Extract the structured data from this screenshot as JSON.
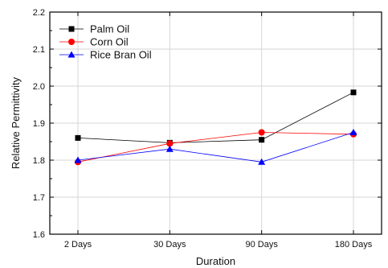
{
  "chart_data": {
    "type": "line",
    "categories": [
      "2 Days",
      "30 Days",
      "90 Days",
      "180 Days"
    ],
    "series": [
      {
        "name": "Palm Oil",
        "values": [
          1.86,
          1.847,
          1.855,
          1.983
        ],
        "color": "#000000",
        "marker": "square"
      },
      {
        "name": "Corn Oil",
        "values": [
          1.795,
          1.845,
          1.875,
          1.87
        ],
        "color": "#ff0000",
        "marker": "circle"
      },
      {
        "name": "Rice Bran Oil",
        "values": [
          1.8,
          1.83,
          1.795,
          1.875
        ],
        "color": "#0000ff",
        "marker": "triangle"
      }
    ],
    "xlabel": "Duration",
    "ylabel": "Relative Permittivity",
    "ylim": [
      1.6,
      2.2
    ],
    "yticks": [
      "1.6",
      "1.7",
      "1.8",
      "1.9",
      "2.0",
      "2.1",
      "2.2"
    ],
    "grid": true,
    "legend_position": "top-left"
  }
}
